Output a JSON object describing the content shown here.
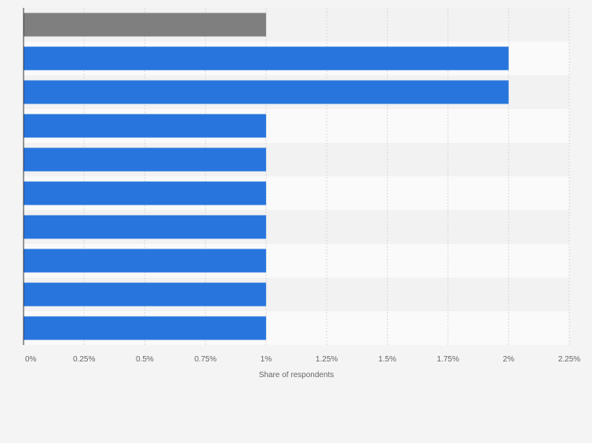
{
  "chart_data": {
    "type": "bar",
    "orientation": "horizontal",
    "title": "",
    "xlabel": "Share of respondents",
    "ylabel": "",
    "categories": [
      "",
      "",
      "",
      "",
      "",
      "",
      "",
      "",
      "",
      ""
    ],
    "values": [
      1,
      2,
      2,
      1,
      1,
      1,
      1,
      1,
      1,
      1
    ],
    "xlim": [
      0,
      2.25
    ],
    "ticks": [
      0,
      0.25,
      0.5,
      0.75,
      1,
      1.25,
      1.5,
      1.75,
      2,
      2.25
    ],
    "tick_labels": [
      "0%",
      "0.25%",
      "0.5%",
      "0.75%",
      "1%",
      "1.25%",
      "1.5%",
      "1.75%",
      "2%",
      "2.25%"
    ],
    "grid": true,
    "colors": {
      "background": "#f4f4f4",
      "band_light": "#fafafa",
      "band_dark": "#f2f2f2",
      "bar": "#2876dd",
      "bar_highlight": "#7f7f7f",
      "gridline": "#d8d8d8",
      "axis": "#333333",
      "tick_label": "#666666"
    },
    "highlight_index": 0
  }
}
